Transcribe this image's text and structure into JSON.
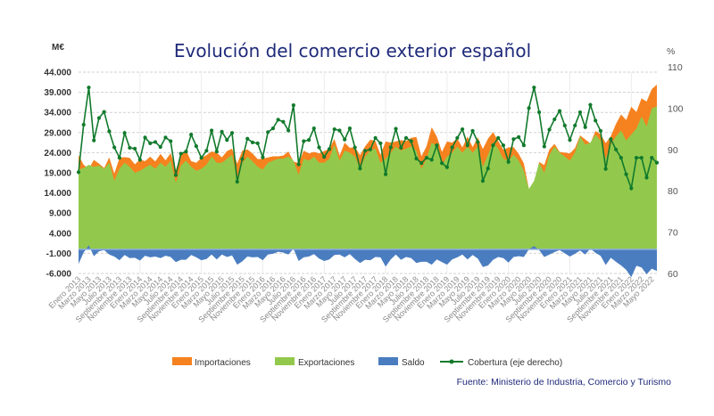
{
  "chart_data": {
    "type": "area",
    "title": "Evolución del comercio exterior español",
    "ylabel_left": "M€",
    "ylabel_right": "%",
    "ylim_left": [
      -6000,
      44000
    ],
    "ylim_right": [
      60,
      110
    ],
    "yticks_left": [
      "44.000",
      "39.000",
      "34.000",
      "29.000",
      "24.000",
      "19.000",
      "14.000",
      "9.000",
      "4.000",
      "-1.000",
      "-6.000"
    ],
    "yticks_right": [
      "110",
      "100",
      "90",
      "80",
      "70",
      "60"
    ],
    "grid": true,
    "legend_position": "bottom",
    "x_tick_labels": [
      "Enero 2013",
      "Marzo 2013",
      "Mayo 2013",
      "Julio 2013",
      "Septiembre 2013",
      "Noviembre 2013",
      "Enero 2014",
      "Marzo 2014",
      "Mayo 2014",
      "Julio 2014",
      "Septiembre 2014",
      "Noviembre 2014",
      "Enero 2015",
      "Marzo 2015",
      "Mayo 2015",
      "Julio 2015",
      "Septiembre 2015",
      "Noviembre 2015",
      "Enero 2016",
      "Marzo 2016",
      "Mayo 2016",
      "Julio 2016",
      "Septiembre 2016",
      "Noviembre 2016",
      "Enero 2017",
      "Marzo 2017",
      "Mayo 2017",
      "Julio 2017",
      "Septiembre 2017",
      "Noviembre 2017",
      "Enero 2018",
      "Marzo 2018",
      "Mayo 2018",
      "Julio 2018",
      "Septiembre 2018",
      "Noviembre 2018",
      "Enero 2019",
      "Marzo 2019",
      "Mayo 2019",
      "Julio 2019",
      "Septiembre 2019",
      "Noviembre 2019",
      "Enero 2020",
      "Marzo 2020",
      "Mayo 2020",
      "Julio 2020",
      "Septiembre 2020",
      "Noviembre 2020",
      "Enero 2021",
      "Marzo 2021",
      "Mayo 2021",
      "Julio 2021",
      "Septiembre 2021",
      "Noviembre 2021",
      "Enero 2022",
      "Marzo 2022",
      "Mayo 2022"
    ],
    "series": [
      {
        "name": "Importaciones",
        "axis": "left",
        "color": "#f5821f",
        "values": [
          23400,
          21000,
          20000,
          22200,
          21300,
          20200,
          22800,
          18800,
          22700,
          22900,
          22700,
          21100,
          22300,
          21900,
          23000,
          21800,
          23700,
          22100,
          23900,
          19700,
          23400,
          24600,
          21900,
          21500,
          22700,
          23400,
          24300,
          24000,
          22800,
          24400,
          25000,
          21300,
          24500,
          24800,
          23800,
          22400,
          22500,
          22800,
          23100,
          23100,
          23300,
          24300,
          21800,
          21400,
          24500,
          23800,
          24200,
          23800,
          24400,
          25000,
          27400,
          23300,
          26500,
          25200,
          25400,
          23400,
          25600,
          27200,
          26900,
          23500,
          26800,
          26500,
          26800,
          27100,
          26900,
          27700,
          27900,
          23100,
          25600,
          30300,
          28000,
          24200,
          26800,
          26500,
          27500,
          25300,
          28000,
          25400,
          27800,
          24900,
          27500,
          29100,
          26900,
          24700,
          25300,
          25400,
          23700,
          21400,
          15000,
          16200,
          21700,
          20900,
          24800,
          26200,
          24200,
          24000,
          23800,
          25100,
          28300,
          27300,
          26300,
          29400,
          28600,
          26400,
          28100,
          31100,
          33500,
          32100,
          35400,
          34100,
          37500,
          36700,
          39800,
          40900
        ]
      },
      {
        "name": "Exportaciones",
        "axis": "left",
        "color": "#92c94c",
        "values": [
          19800,
          20200,
          21000,
          20500,
          20800,
          20000,
          21500,
          17000,
          20000,
          21500,
          20500,
          19000,
          19500,
          20300,
          21000,
          20000,
          21500,
          20500,
          22000,
          16500,
          20800,
          22000,
          20500,
          19500,
          20000,
          21000,
          23000,
          21500,
          21500,
          22500,
          23500,
          17500,
          21500,
          23000,
          21800,
          20500,
          19800,
          21500,
          22000,
          22500,
          22500,
          23000,
          22000,
          18500,
          22500,
          22000,
          23000,
          21500,
          21500,
          22500,
          26000,
          22000,
          24500,
          24000,
          23000,
          20000,
          23000,
          24500,
          25000,
          21500,
          22500,
          24000,
          25500,
          24500,
          25000,
          25500,
          24500,
          20000,
          22500,
          26500,
          25500,
          21000,
          23000,
          24000,
          25500,
          24000,
          25500,
          24000,
          25500,
          20500,
          23500,
          26500,
          25000,
          22500,
          22000,
          23500,
          22000,
          19500,
          15000,
          17000,
          21500,
          19000,
          23500,
          25500,
          24000,
          23000,
          22000,
          24000,
          28000,
          26000,
          26500,
          28500,
          27000,
          22500,
          26000,
          28000,
          29500,
          27000,
          28500,
          30000,
          33000,
          30500,
          35000,
          35500
        ]
      },
      {
        "name": "Saldo",
        "axis": "left",
        "color": "#4a7dc0",
        "values": [
          -3600,
          -800,
          1000,
          -1700,
          -500,
          -200,
          -1300,
          -1800,
          -2700,
          -1400,
          -2200,
          -2100,
          -2800,
          -1600,
          -2000,
          -1800,
          -2200,
          -1600,
          -1900,
          -3200,
          -2600,
          -2600,
          -1400,
          -2000,
          -2700,
          -2400,
          -1300,
          -2500,
          -1300,
          -1900,
          -1500,
          -3800,
          -3000,
          -1800,
          -2000,
          -1900,
          -2700,
          -1300,
          -1100,
          -600,
          -800,
          -1300,
          200,
          -2900,
          -2000,
          -1800,
          -1200,
          -2300,
          -2900,
          -2500,
          -1400,
          -1300,
          -2000,
          -1200,
          -2400,
          -3400,
          -2600,
          -2700,
          -1900,
          -2000,
          -4300,
          -2500,
          -1300,
          -2600,
          -1900,
          -2200,
          -3400,
          -3100,
          -3100,
          -3800,
          -2500,
          -3200,
          -3800,
          -2500,
          -2000,
          -1300,
          -2500,
          -1400,
          -2300,
          -4400,
          -4000,
          -2600,
          -1900,
          -2200,
          -3300,
          -1900,
          -1700,
          -1900,
          0,
          800,
          -200,
          -1900,
          -1300,
          -700,
          -200,
          -1000,
          -1800,
          -1100,
          -300,
          -1300,
          200,
          -900,
          -1600,
          -3900,
          -2100,
          -3100,
          -4000,
          -5100,
          -6900,
          -4100,
          -4500,
          -6200,
          -4800,
          -5400
        ]
      },
      {
        "name": "Cobertura (eje derecho)",
        "axis": "right",
        "color": "#117a2c",
        "values": [
          84.5,
          96,
          105,
          92.2,
          97.6,
          99.1,
          94.4,
          90.5,
          88,
          94,
          90.4,
          90.2,
          87.5,
          92.9,
          91.5,
          91.8,
          90.6,
          92.9,
          92,
          83.8,
          89,
          89.5,
          93.6,
          90.8,
          88,
          89.7,
          94.6,
          89.5,
          94.3,
          92.3,
          94,
          82.2,
          87.7,
          92.6,
          91.7,
          91.5,
          88.1,
          94.2,
          95.1,
          97.2,
          96.7,
          94.6,
          100.7,
          86.4,
          92,
          92.3,
          95.1,
          90.5,
          88.2,
          90.1,
          94.9,
          94.6,
          92.4,
          95.1,
          90.5,
          85.4,
          89.7,
          90,
          92.8,
          91.5,
          84,
          90.5,
          95,
          90.4,
          92.8,
          92,
          87.8,
          86.7,
          88,
          87.5,
          91,
          86.7,
          85.7,
          90.5,
          92.8,
          94.9,
          91,
          94.5,
          91.8,
          82.4,
          85.4,
          91,
          92.8,
          91,
          87,
          92.5,
          93,
          91,
          100,
          105,
          99,
          90.7,
          94.8,
          97.3,
          99.3,
          95.8,
          92.3,
          95.8,
          99,
          95.4,
          100.8,
          97,
          94.5,
          85.3,
          92.5,
          90,
          88,
          84,
          80.6,
          88,
          88,
          83.2,
          88,
          86.8
        ]
      }
    ],
    "source": "Fuente: Ministerio de Industria, Comercio y Turismo"
  }
}
